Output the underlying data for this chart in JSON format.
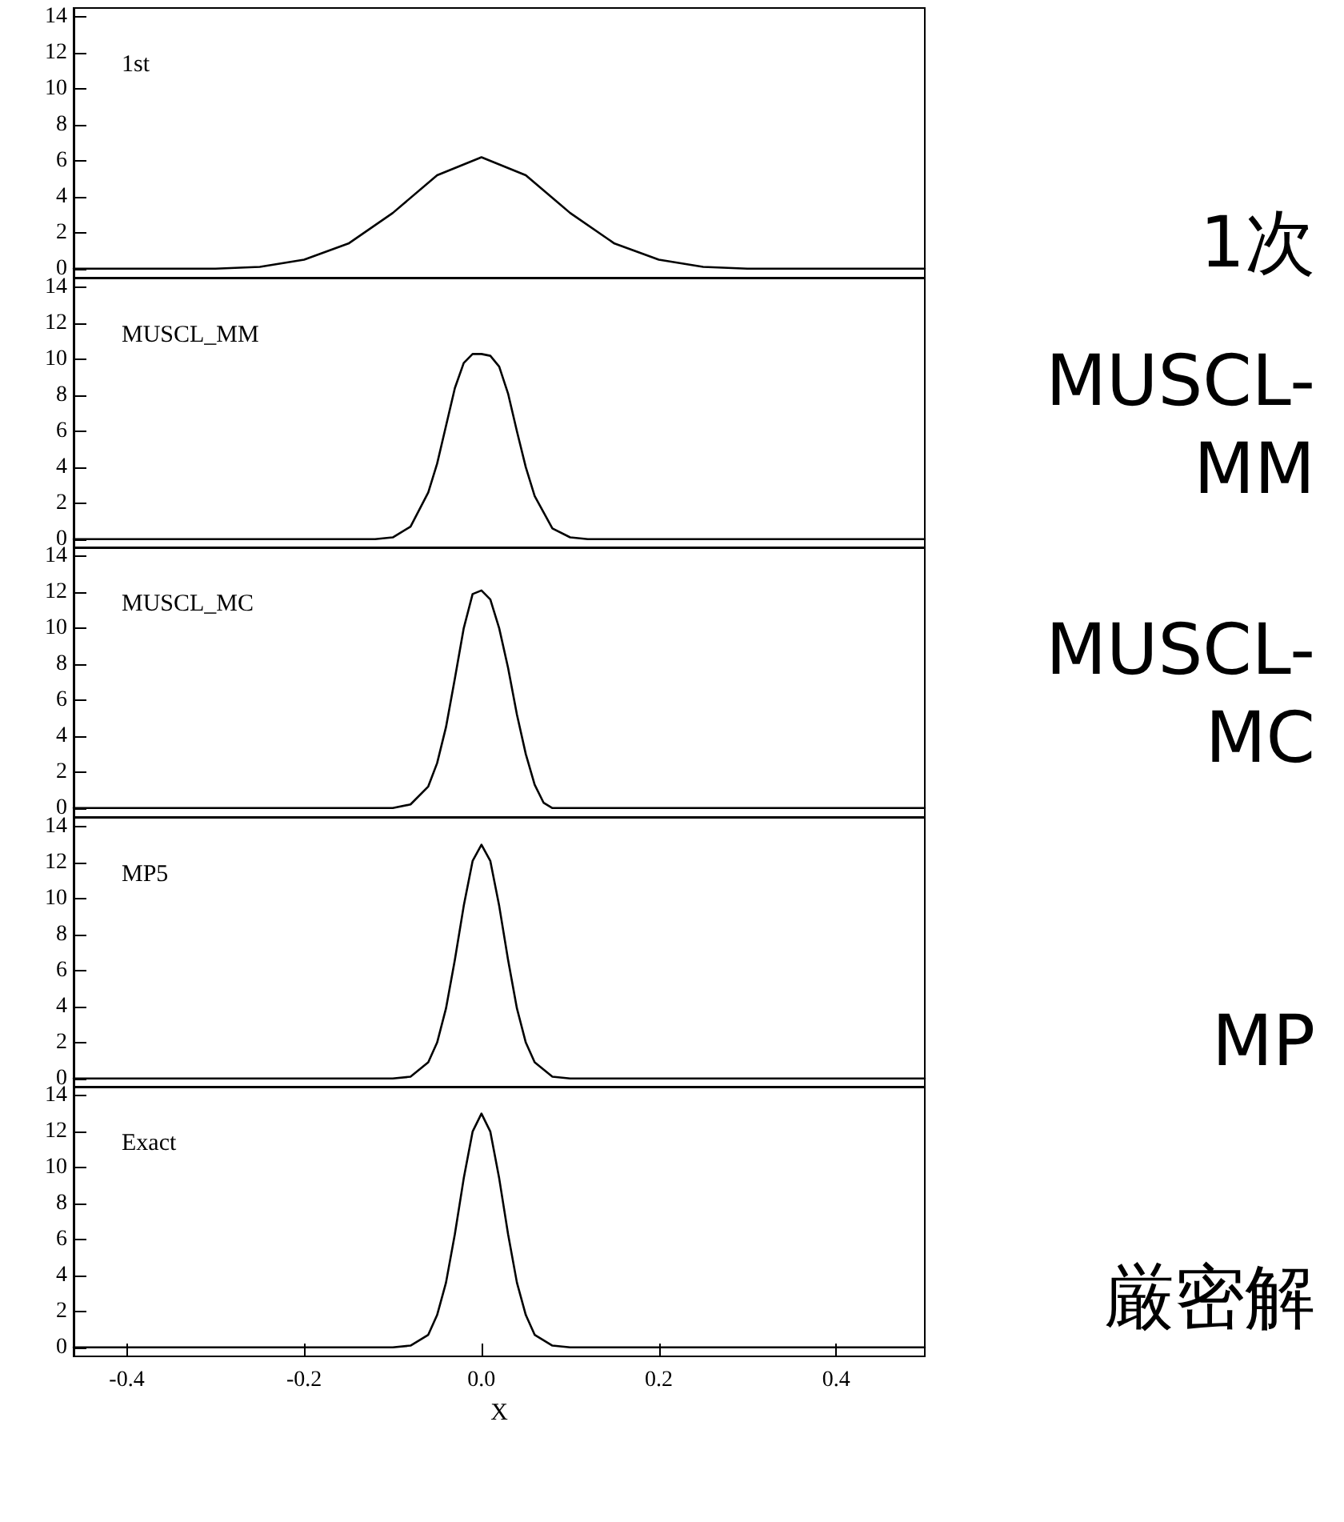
{
  "chart_data": [
    {
      "type": "line",
      "annotations": [
        "1st",
        "1次"
      ],
      "x": [
        -0.46,
        -0.3,
        -0.25,
        -0.2,
        -0.15,
        -0.1,
        -0.05,
        0,
        0.05,
        0.1,
        0.15,
        0.2,
        0.25,
        0.3,
        0.5
      ],
      "series": [
        {
          "color": "#000000",
          "values": [
            0,
            0,
            0.1,
            0.5,
            1.4,
            3.1,
            5.2,
            6.2,
            5.2,
            3.1,
            1.4,
            0.5,
            0.1,
            0,
            0
          ]
        }
      ],
      "xlim": [
        -0.46,
        0.5
      ],
      "ylim": [
        -0.5,
        14.5
      ],
      "yticks": [
        0,
        2,
        4,
        6,
        8,
        10,
        12,
        14
      ],
      "tick_labels": "y",
      "grid": false,
      "marker": "none",
      "line_style": "solid"
    },
    {
      "type": "line",
      "annotations": [
        "MUSCL_MM",
        "MUSCL-MM"
      ],
      "x": [
        -0.46,
        -0.12,
        -0.1,
        -0.08,
        -0.06,
        -0.05,
        -0.04,
        -0.03,
        -0.02,
        -0.01,
        0,
        0.01,
        0.02,
        0.03,
        0.04,
        0.05,
        0.06,
        0.08,
        0.1,
        0.12,
        0.5
      ],
      "series": [
        {
          "color": "#000000",
          "values": [
            0,
            0,
            0.1,
            0.7,
            2.6,
            4.2,
            6.3,
            8.4,
            9.8,
            10.3,
            10.3,
            10.2,
            9.6,
            8.1,
            6.0,
            4.0,
            2.4,
            0.6,
            0.1,
            0,
            0
          ]
        }
      ],
      "xlim": [
        -0.46,
        0.5
      ],
      "ylim": [
        -0.5,
        14.5
      ],
      "yticks": [
        0,
        2,
        4,
        6,
        8,
        10,
        12,
        14
      ],
      "tick_labels": "y",
      "grid": false,
      "marker": "none",
      "line_style": "solid"
    },
    {
      "type": "line",
      "annotations": [
        "MUSCL_MC",
        "MUSCL-MC"
      ],
      "x": [
        -0.46,
        -0.1,
        -0.08,
        -0.06,
        -0.05,
        -0.04,
        -0.03,
        -0.02,
        -0.01,
        0,
        0.01,
        0.02,
        0.03,
        0.04,
        0.05,
        0.06,
        0.07,
        0.08,
        0.5
      ],
      "series": [
        {
          "color": "#000000",
          "values": [
            0,
            0,
            0.2,
            1.2,
            2.5,
            4.5,
            7.2,
            10.0,
            11.9,
            12.1,
            11.6,
            10.0,
            7.8,
            5.2,
            3.0,
            1.3,
            0.3,
            0,
            0
          ]
        }
      ],
      "xlim": [
        -0.46,
        0.5
      ],
      "ylim": [
        -0.5,
        14.5
      ],
      "yticks": [
        0,
        2,
        4,
        6,
        8,
        10,
        12,
        14
      ],
      "tick_labels": "y",
      "grid": false,
      "marker": "none",
      "line_style": "solid"
    },
    {
      "type": "line",
      "annotations": [
        "MP5",
        "MP"
      ],
      "x": [
        -0.46,
        -0.1,
        -0.08,
        -0.06,
        -0.05,
        -0.04,
        -0.03,
        -0.02,
        -0.01,
        0,
        0.01,
        0.02,
        0.03,
        0.04,
        0.05,
        0.06,
        0.08,
        0.1,
        0.5
      ],
      "series": [
        {
          "color": "#000000",
          "values": [
            0,
            0,
            0.1,
            0.9,
            2.0,
            3.9,
            6.6,
            9.6,
            12.1,
            13,
            12.1,
            9.6,
            6.6,
            3.9,
            2.0,
            0.9,
            0.1,
            0,
            0
          ]
        }
      ],
      "xlim": [
        -0.46,
        0.5
      ],
      "ylim": [
        -0.5,
        14.5
      ],
      "yticks": [
        0,
        2,
        4,
        6,
        8,
        10,
        12,
        14
      ],
      "tick_labels": "y",
      "grid": false,
      "marker": "none",
      "line_style": "solid"
    },
    {
      "type": "line",
      "xlabel": "X",
      "annotations": [
        "Exact",
        "厳密解"
      ],
      "x": [
        -0.46,
        -0.1,
        -0.08,
        -0.06,
        -0.05,
        -0.04,
        -0.03,
        -0.02,
        -0.01,
        0,
        0.01,
        0.02,
        0.03,
        0.04,
        0.05,
        0.06,
        0.08,
        0.1,
        0.5
      ],
      "series": [
        {
          "color": "#000000",
          "values": [
            0,
            0,
            0.1,
            0.7,
            1.8,
            3.6,
            6.3,
            9.4,
            12.0,
            13,
            12.0,
            9.4,
            6.3,
            3.6,
            1.8,
            0.7,
            0.1,
            0,
            0
          ]
        }
      ],
      "xlim": [
        -0.46,
        0.5
      ],
      "ylim": [
        -0.5,
        14.5
      ],
      "yticks": [
        0,
        2,
        4,
        6,
        8,
        10,
        12,
        14
      ],
      "xticks": [
        -0.4,
        -0.2,
        {
          "value": 0,
          "label": "0.0"
        },
        0.2,
        0.4
      ],
      "grid": false,
      "marker": "none",
      "line_style": "solid"
    }
  ]
}
